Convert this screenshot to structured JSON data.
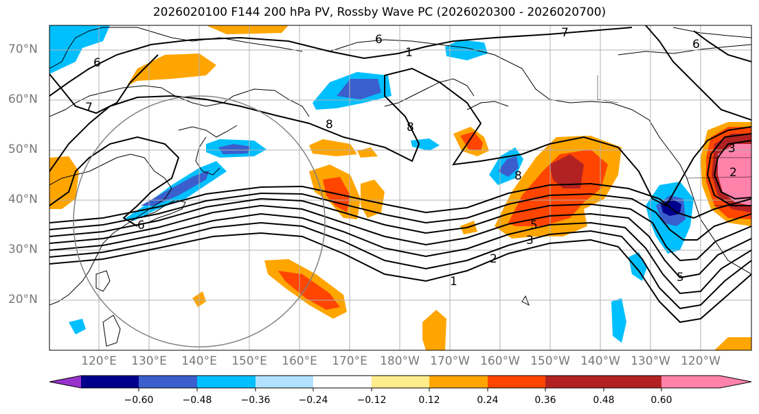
{
  "title": "2026020100 F144 200 hPa PV, Rossby Wave PC (2026020300 - 2026020700)",
  "lat_labels": [
    "70°N",
    "60°N",
    "50°N",
    "40°N",
    "30°N",
    "20°N"
  ],
  "lon_labels": [
    "120°E",
    "130°E",
    "140°E",
    "150°E",
    "160°E",
    "170°E",
    "180°W",
    "170°W",
    "160°W",
    "150°W",
    "140°W",
    "130°W",
    "120°W"
  ],
  "colorbar": {
    "ticks": [
      "−0.60",
      "−0.48",
      "−0.36",
      "−0.24",
      "−0.12",
      "0.12",
      "0.24",
      "0.36",
      "0.48",
      "0.60"
    ],
    "colors": [
      "#9932cc",
      "#00008b",
      "#3a5fcd",
      "#00bfff",
      "#b0e2ff",
      "#ffffff",
      "#ffec8b",
      "#ffa500",
      "#ff4500",
      "#b22222",
      "#ff82ab"
    ]
  },
  "contour_labels": [
    "1",
    "2",
    "3",
    "5",
    "6",
    "7",
    "8",
    "8",
    "1",
    "6",
    "5",
    "6",
    "7",
    "2",
    "3",
    "8",
    "6"
  ]
}
